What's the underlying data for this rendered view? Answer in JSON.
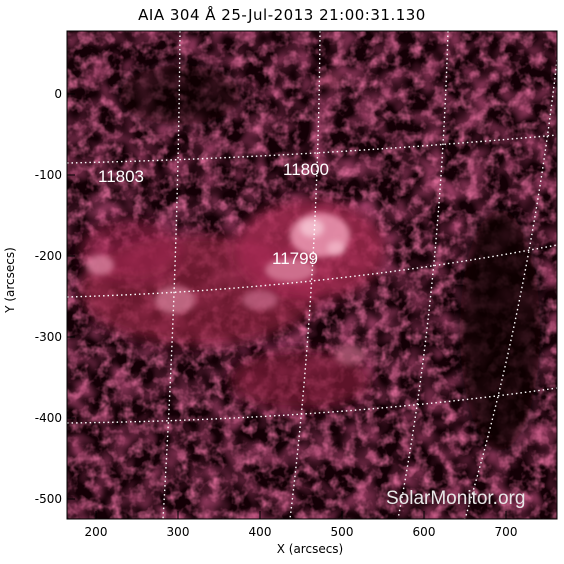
{
  "title": "AIA 304 Å 25-Jul-2013 21:00:31.130",
  "axes": {
    "xlabel": "X (arcsecs)",
    "ylabel": "Y (arcsecs)",
    "xticks": [
      "200",
      "300",
      "400",
      "500",
      "600",
      "700"
    ],
    "yticks": [
      "0",
      "-100",
      "-200",
      "-300",
      "-400",
      "-500"
    ]
  },
  "active_regions": [
    {
      "label": "11803"
    },
    {
      "label": "11800"
    },
    {
      "label": "11799"
    }
  ],
  "watermark": "SolarMonitor.org",
  "colors": {
    "background": "#140006",
    "plasma_mid": "#8a1f3f",
    "plasma_bright": "#f2b6c8",
    "grid": "#ffffff",
    "text": "#000000"
  }
}
